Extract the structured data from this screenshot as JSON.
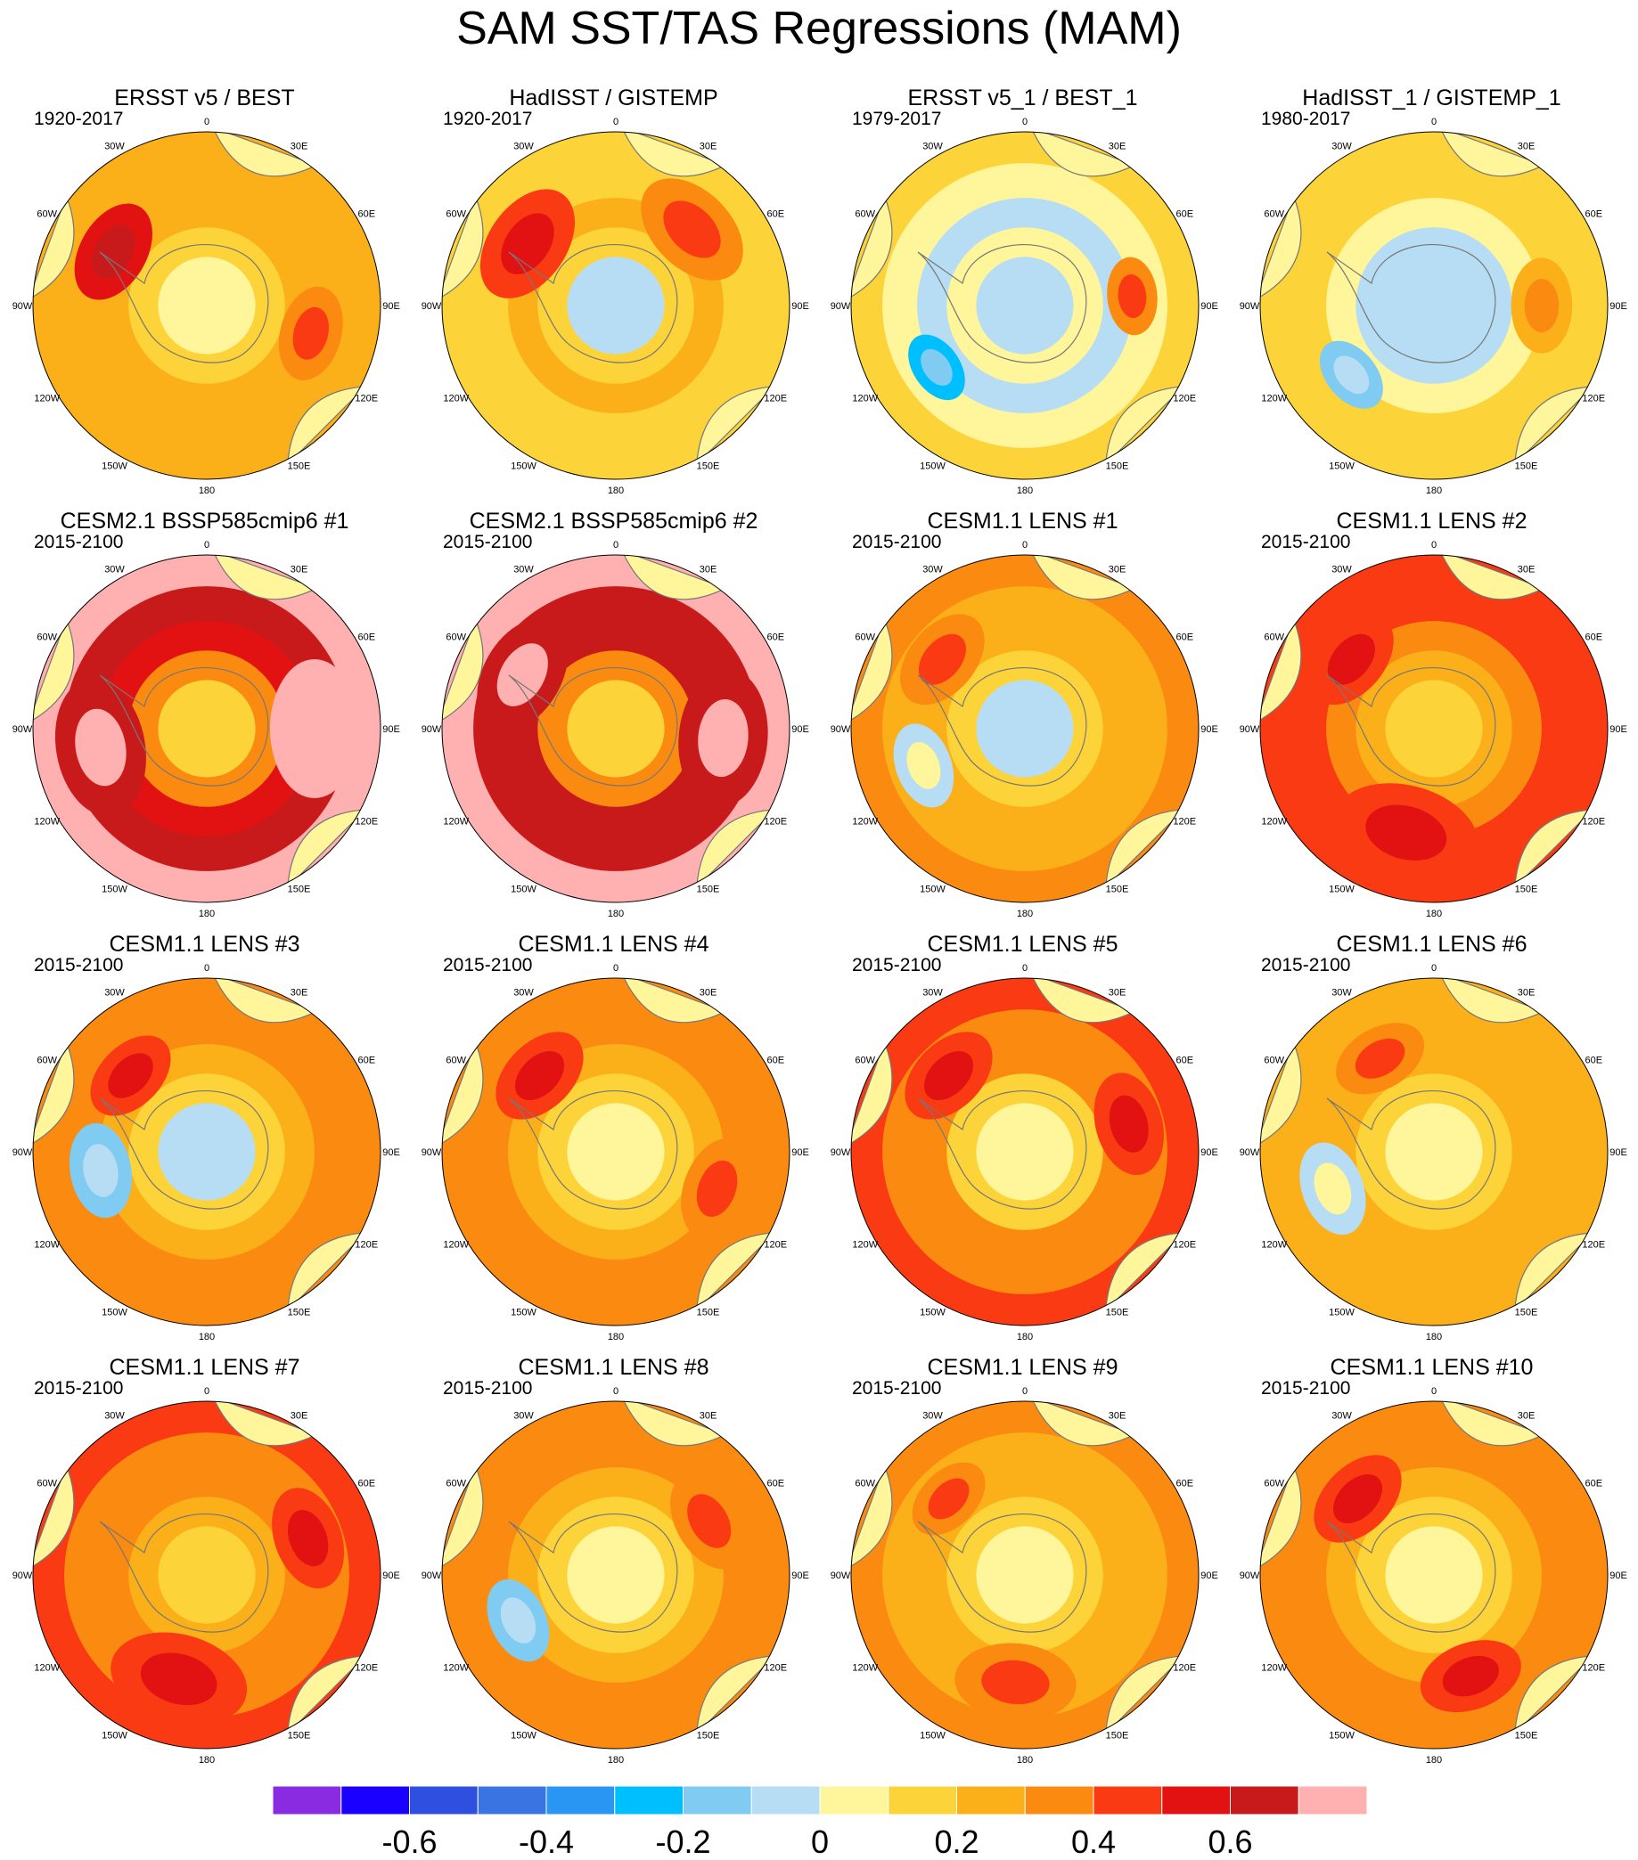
{
  "page": {
    "title": "SAM SST/TAS Regressions (MAM)"
  },
  "legend": {
    "colors": [
      "#8a2be2",
      "#1a00ff",
      "#2e4fe0",
      "#3a74e3",
      "#2a96f4",
      "#00bfff",
      "#7fcbf2",
      "#b7ddf4",
      "#fff59a",
      "#fdd33a",
      "#fbb01a",
      "#fb8a10",
      "#fa3a12",
      "#e31212",
      "#c81a1a",
      "#ffb0b0"
    ],
    "tick_labels": [
      "-0.6",
      "-0.4",
      "-0.2",
      "0",
      "0.2",
      "0.4",
      "0.6"
    ],
    "levels": [
      -0.7,
      -0.6,
      -0.5,
      -0.4,
      -0.3,
      -0.2,
      -0.1,
      0,
      0.1,
      0.2,
      0.3,
      0.4,
      0.5,
      0.6,
      0.7
    ]
  },
  "chart_data": {
    "type": "heatmap",
    "title": "SAM SST/TAS Regressions (MAM)",
    "projection": "south-polar-stereographic",
    "longitude_labels": [
      "0",
      "30E",
      "60E",
      "90E",
      "120E",
      "150E",
      "180",
      "150W",
      "120W",
      "90W",
      "60W",
      "30W"
    ],
    "panels": [
      {
        "title": "ERSST v5 / BEST",
        "period": "1920-2017",
        "typical_value": 0.2,
        "rings": [
          0.25,
          0.2,
          0.2,
          0.1,
          0
        ],
        "blobs": [
          {
            "lon": -60,
            "r": 0.6,
            "value": 0.5
          },
          {
            "lon": 105,
            "r": 0.55,
            "value": 0.3
          }
        ]
      },
      {
        "title": "HadISST / GISTEMP",
        "period": "1920-2017",
        "typical_value": 0.1,
        "rings": [
          0.1,
          0.1,
          0.2,
          0.1,
          -0.05
        ],
        "blobs": [
          {
            "lon": -55,
            "r": 0.7,
            "value": 0.4
          },
          {
            "lon": 45,
            "r": 0.7,
            "value": 0.3
          }
        ]
      },
      {
        "title": "ERSST v5_1 / BEST_1",
        "period": "1979-2017",
        "typical_value": -0.05,
        "rings": [
          0.15,
          0,
          -0.1,
          0,
          -0.05
        ],
        "blobs": [
          {
            "lon": -125,
            "r": 0.42,
            "value": -0.3
          },
          {
            "lon": 85,
            "r": 0.45,
            "value": 0.3
          }
        ]
      },
      {
        "title": "HadISST_1 / GISTEMP_1",
        "period": "1980-2017",
        "typical_value": 0.05,
        "rings": [
          0.15,
          0.1,
          0,
          -0.05,
          -0.05
        ],
        "blobs": [
          {
            "lon": -130,
            "r": 0.45,
            "value": -0.2
          },
          {
            "lon": 90,
            "r": 0.55,
            "value": 0.2
          }
        ]
      },
      {
        "title": "CESM2.1 BSSP585cmip6 #1",
        "period": "2015-2100",
        "typical_value": 0.6,
        "rings": [
          0.7,
          0.6,
          0.5,
          0.3,
          0.1
        ],
        "blobs": [
          {
            "lon": 90,
            "r": 0.8,
            "value": 0.7
          },
          {
            "lon": -100,
            "r": 0.8,
            "value": 0.6
          }
        ]
      },
      {
        "title": "CESM2.1 BSSP585cmip6 #2",
        "period": "2015-2100",
        "typical_value": 0.6,
        "rings": [
          0.7,
          0.6,
          0.6,
          0.3,
          0.1
        ],
        "blobs": [
          {
            "lon": 95,
            "r": 0.8,
            "value": 0.65
          },
          {
            "lon": -60,
            "r": 0.7,
            "value": 0.6
          }
        ]
      },
      {
        "title": "CESM1.1 LENS #1",
        "period": "2015-2100",
        "typical_value": 0.2,
        "rings": [
          0.3,
          0.25,
          0.2,
          0.1,
          -0.05
        ],
        "blobs": [
          {
            "lon": -110,
            "r": 0.5,
            "value": -0.1
          },
          {
            "lon": -50,
            "r": 0.6,
            "value": 0.3
          }
        ]
      },
      {
        "title": "CESM1.1 LENS #2",
        "period": "2015-2100",
        "typical_value": 0.3,
        "rings": [
          0.45,
          0.4,
          0.35,
          0.25,
          0.1
        ],
        "blobs": [
          {
            "lon": -165,
            "r": 0.85,
            "value": 0.45
          },
          {
            "lon": -50,
            "r": 0.6,
            "value": 0.45
          }
        ]
      },
      {
        "title": "CESM1.1 LENS #3",
        "period": "2015-2100",
        "typical_value": 0.2,
        "rings": [
          0.3,
          0.3,
          0.25,
          0.1,
          -0.05
        ],
        "blobs": [
          {
            "lon": -100,
            "r": 0.55,
            "value": -0.2
          },
          {
            "lon": -45,
            "r": 0.55,
            "value": 0.4
          }
        ]
      },
      {
        "title": "CESM1.1 LENS #4",
        "period": "2015-2100",
        "typical_value": 0.25,
        "rings": [
          0.35,
          0.3,
          0.25,
          0.15,
          0.05
        ],
        "blobs": [
          {
            "lon": -45,
            "r": 0.6,
            "value": 0.4
          },
          {
            "lon": 110,
            "r": 0.6,
            "value": 0.3
          }
        ]
      },
      {
        "title": "CESM1.1 LENS #5",
        "period": "2015-2100",
        "typical_value": 0.3,
        "rings": [
          0.4,
          0.35,
          0.3,
          0.15,
          0.05
        ],
        "blobs": [
          {
            "lon": -45,
            "r": 0.6,
            "value": 0.45
          },
          {
            "lon": 75,
            "r": 0.6,
            "value": 0.45
          }
        ]
      },
      {
        "title": "CESM1.1 LENS #6",
        "period": "2015-2100",
        "typical_value": 0.15,
        "rings": [
          0.25,
          0.25,
          0.2,
          0.1,
          0
        ],
        "blobs": [
          {
            "lon": -110,
            "r": 0.55,
            "value": -0.1
          },
          {
            "lon": -30,
            "r": 0.55,
            "value": 0.35
          }
        ]
      },
      {
        "title": "CESM1.1 LENS #7",
        "period": "2015-2100",
        "typical_value": 0.3,
        "rings": [
          0.4,
          0.35,
          0.3,
          0.2,
          0.1
        ],
        "blobs": [
          {
            "lon": -165,
            "r": 0.8,
            "value": 0.45
          },
          {
            "lon": 70,
            "r": 0.6,
            "value": 0.4
          }
        ]
      },
      {
        "title": "CESM1.1 LENS #8",
        "period": "2015-2100",
        "typical_value": 0.25,
        "rings": [
          0.35,
          0.3,
          0.25,
          0.1,
          0.05
        ],
        "blobs": [
          {
            "lon": -115,
            "r": 0.5,
            "value": -0.2
          },
          {
            "lon": 60,
            "r": 0.6,
            "value": 0.35
          }
        ]
      },
      {
        "title": "CESM1.1 LENS #9",
        "period": "2015-2100",
        "typical_value": 0.2,
        "rings": [
          0.3,
          0.25,
          0.2,
          0.1,
          0
        ],
        "blobs": [
          {
            "lon": -175,
            "r": 0.7,
            "value": 0.35
          },
          {
            "lon": -45,
            "r": 0.5,
            "value": 0.3
          }
        ]
      },
      {
        "title": "CESM1.1 LENS #10",
        "period": "2015-2100",
        "typical_value": 0.25,
        "rings": [
          0.35,
          0.3,
          0.25,
          0.1,
          0.05
        ],
        "blobs": [
          {
            "lon": -45,
            "r": 0.6,
            "value": 0.4
          },
          {
            "lon": 160,
            "r": 0.6,
            "value": 0.4
          }
        ]
      }
    ]
  }
}
